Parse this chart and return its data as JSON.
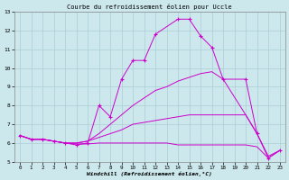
{
  "title": "Courbe du refroidissement éolien pour Uccle",
  "xlabel": "Windchill (Refroidissement éolien,°C)",
  "xlim": [
    -0.5,
    23.5
  ],
  "ylim": [
    5,
    13
  ],
  "yticks": [
    5,
    6,
    7,
    8,
    9,
    10,
    11,
    12,
    13
  ],
  "xticks": [
    0,
    1,
    2,
    3,
    4,
    5,
    6,
    7,
    8,
    9,
    10,
    11,
    12,
    13,
    14,
    15,
    16,
    17,
    18,
    19,
    20,
    21,
    22,
    23
  ],
  "bg_color": "#cce8ec",
  "grid_color": "#aacdd4",
  "line_color": "#cc00cc",
  "lines": [
    {
      "x": [
        0,
        1,
        2,
        3,
        4,
        5,
        6,
        7,
        8,
        9,
        10,
        11,
        12,
        14,
        15,
        16,
        17,
        18,
        20,
        21,
        22,
        23
      ],
      "y": [
        6.4,
        6.2,
        6.2,
        6.1,
        6.0,
        5.9,
        6.0,
        8.0,
        7.4,
        9.4,
        10.4,
        10.4,
        11.8,
        12.6,
        12.6,
        11.7,
        11.1,
        9.4,
        9.4,
        6.5,
        5.2,
        5.6
      ],
      "marker": "+"
    },
    {
      "x": [
        0,
        1,
        2,
        3,
        4,
        5,
        6,
        7,
        8,
        9,
        10,
        11,
        12,
        13,
        14,
        15,
        16,
        17,
        18,
        20,
        21
      ],
      "y": [
        6.4,
        6.2,
        6.2,
        6.1,
        6.0,
        6.0,
        6.1,
        6.5,
        7.0,
        7.5,
        8.0,
        8.4,
        8.8,
        9.0,
        9.3,
        9.5,
        9.7,
        9.8,
        9.4,
        7.5,
        6.5
      ],
      "marker": null
    },
    {
      "x": [
        0,
        1,
        2,
        3,
        4,
        5,
        6,
        7,
        8,
        9,
        10,
        11,
        12,
        13,
        14,
        15,
        16,
        17,
        18,
        20,
        21,
        22,
        23
      ],
      "y": [
        6.4,
        6.2,
        6.2,
        6.1,
        6.0,
        6.0,
        6.1,
        6.3,
        6.5,
        6.7,
        7.0,
        7.1,
        7.2,
        7.3,
        7.4,
        7.5,
        7.5,
        7.5,
        7.5,
        7.5,
        6.5,
        5.3,
        5.6
      ],
      "marker": null
    },
    {
      "x": [
        0,
        1,
        2,
        3,
        4,
        5,
        6,
        7,
        8,
        9,
        10,
        11,
        12,
        13,
        14,
        15,
        16,
        17,
        18,
        20,
        21,
        22,
        23
      ],
      "y": [
        6.4,
        6.2,
        6.2,
        6.1,
        6.0,
        5.95,
        5.95,
        6.0,
        6.0,
        6.0,
        6.0,
        6.0,
        6.0,
        6.0,
        5.9,
        5.9,
        5.9,
        5.9,
        5.9,
        5.9,
        5.8,
        5.2,
        5.6
      ],
      "marker": null
    }
  ]
}
